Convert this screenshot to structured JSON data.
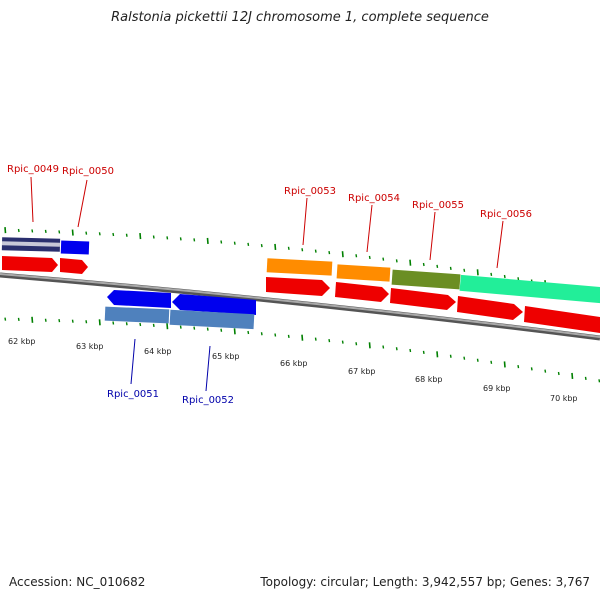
{
  "title": "Ralstonia pickettii 12J chromosome 1, complete sequence",
  "footer": {
    "accession": "Accession: NC_010682",
    "summary": "Topology: circular; Length: 3,942,557 bp; Genes: 3,767"
  },
  "colors": {
    "forward_cds": "#ff0000",
    "reverse_cds": "#0000ff",
    "forward_label": "#cc0000",
    "reverse_label": "#0000aa",
    "backbone": "#808080",
    "tick": "#008000"
  },
  "scale": {
    "unit": "kbp",
    "labels": [
      "62 kbp",
      "63 kbp",
      "64 kbp",
      "65 kbp",
      "66 kbp",
      "67 kbp",
      "68 kbp",
      "69 kbp",
      "70 kbp"
    ]
  },
  "genes": [
    {
      "locus": "Rpic_0049",
      "strand": "forward"
    },
    {
      "locus": "Rpic_0050",
      "strand": "forward"
    },
    {
      "locus": "Rpic_0051",
      "strand": "reverse"
    },
    {
      "locus": "Rpic_0052",
      "strand": "reverse"
    },
    {
      "locus": "Rpic_0053",
      "strand": "forward"
    },
    {
      "locus": "Rpic_0054",
      "strand": "forward"
    },
    {
      "locus": "Rpic_0055",
      "strand": "forward"
    },
    {
      "locus": "Rpic_0056",
      "strand": "forward"
    }
  ]
}
